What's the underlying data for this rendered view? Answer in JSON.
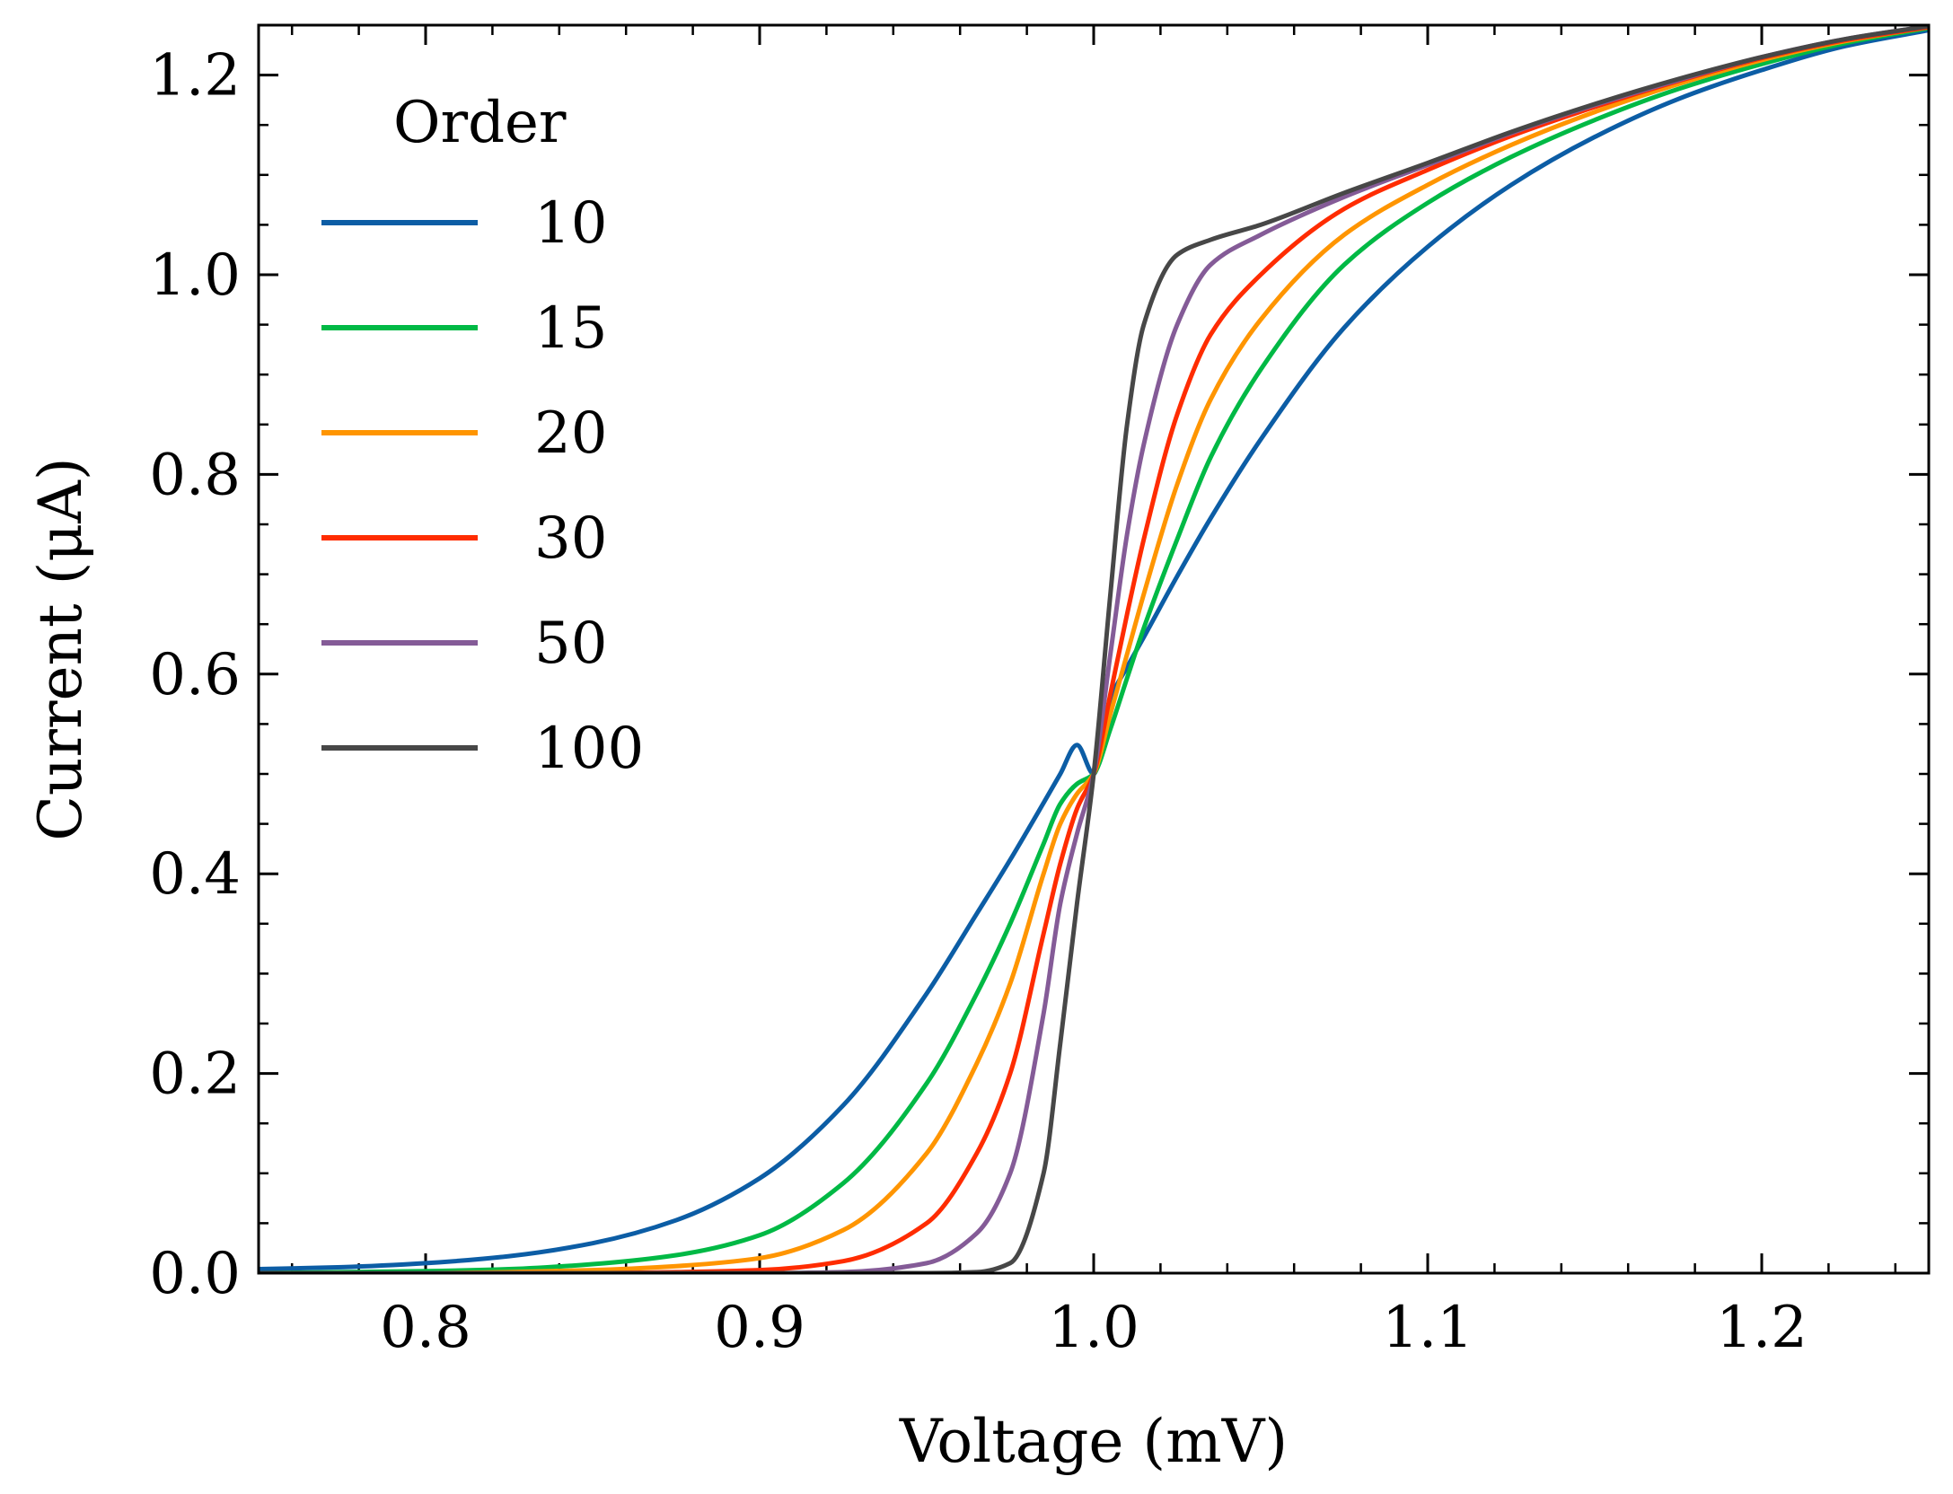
{
  "chart_data": {
    "type": "line",
    "title": "",
    "xlabel": "Voltage (mV)",
    "ylabel": "Current (μA)",
    "xlim": [
      0.75,
      1.25
    ],
    "ylim": [
      0.0,
      1.25
    ],
    "xticks": [
      "0.8",
      "0.9",
      "1.0",
      "1.1",
      "1.2"
    ],
    "yticks": [
      "0.0",
      "0.2",
      "0.4",
      "0.6",
      "0.8",
      "1.0",
      "1.2"
    ],
    "grid": false,
    "legend": {
      "title": "Order",
      "position": "top-left"
    },
    "x": [
      0.75,
      0.775,
      0.8,
      0.825,
      0.85,
      0.875,
      0.9,
      0.925,
      0.95,
      0.965,
      0.975,
      0.985,
      0.99,
      0.995,
      1.0,
      1.005,
      1.01,
      1.015,
      1.025,
      1.035,
      1.05,
      1.075,
      1.1,
      1.125,
      1.15,
      1.175,
      1.2,
      1.225,
      1.25
    ],
    "series": [
      {
        "name": "10",
        "color": "#0C5DA5",
        "values": [
          0.004,
          0.006,
          0.01,
          0.017,
          0.03,
          0.053,
          0.095,
          0.168,
          0.28,
          0.36,
          0.414,
          0.471,
          0.5,
          0.529,
          0.5,
          0.575,
          0.607,
          0.637,
          0.698,
          0.756,
          0.835,
          0.947,
          1.028,
          1.09,
          1.138,
          1.176,
          1.205,
          1.229,
          1.245
        ]
      },
      {
        "name": "15",
        "color": "#00B945",
        "values": [
          0.0,
          0.001,
          0.002,
          0.004,
          0.009,
          0.018,
          0.038,
          0.09,
          0.19,
          0.28,
          0.35,
          0.43,
          0.47,
          0.49,
          0.5,
          0.545,
          0.596,
          0.646,
          0.735,
          0.817,
          0.905,
          1.01,
          1.072,
          1.118,
          1.155,
          1.186,
          1.211,
          1.232,
          1.247
        ]
      },
      {
        "name": "20",
        "color": "#FF9500",
        "values": [
          0.0,
          0.0,
          0.0,
          0.001,
          0.003,
          0.007,
          0.015,
          0.043,
          0.12,
          0.21,
          0.29,
          0.4,
          0.45,
          0.48,
          0.5,
          0.56,
          0.62,
          0.68,
          0.79,
          0.875,
          0.955,
          1.04,
          1.09,
          1.13,
          1.163,
          1.191,
          1.215,
          1.234,
          1.248
        ]
      },
      {
        "name": "30",
        "color": "#FF2C00",
        "values": [
          0.0,
          0.0,
          0.0,
          0.0,
          0.0,
          0.001,
          0.003,
          0.012,
          0.05,
          0.12,
          0.2,
          0.34,
          0.41,
          0.465,
          0.5,
          0.58,
          0.66,
          0.735,
          0.86,
          0.94,
          1.0,
          1.066,
          1.105,
          1.139,
          1.168,
          1.194,
          1.217,
          1.235,
          1.248
        ]
      },
      {
        "name": "50",
        "color": "#845B97",
        "values": [
          0.0,
          0.0,
          0.0,
          0.0,
          0.0,
          0.0,
          0.0,
          0.001,
          0.01,
          0.04,
          0.1,
          0.26,
          0.37,
          0.44,
          0.5,
          0.62,
          0.74,
          0.83,
          0.95,
          1.01,
          1.04,
          1.078,
          1.11,
          1.142,
          1.17,
          1.195,
          1.218,
          1.236,
          1.249
        ]
      },
      {
        "name": "100",
        "color": "#474747",
        "values": [
          0.0,
          0.0,
          0.0,
          0.0,
          0.0,
          0.0,
          0.0,
          0.0,
          0.0,
          0.001,
          0.01,
          0.1,
          0.23,
          0.37,
          0.5,
          0.68,
          0.85,
          0.95,
          1.02,
          1.035,
          1.05,
          1.082,
          1.112,
          1.143,
          1.171,
          1.196,
          1.218,
          1.236,
          1.249
        ]
      }
    ]
  }
}
